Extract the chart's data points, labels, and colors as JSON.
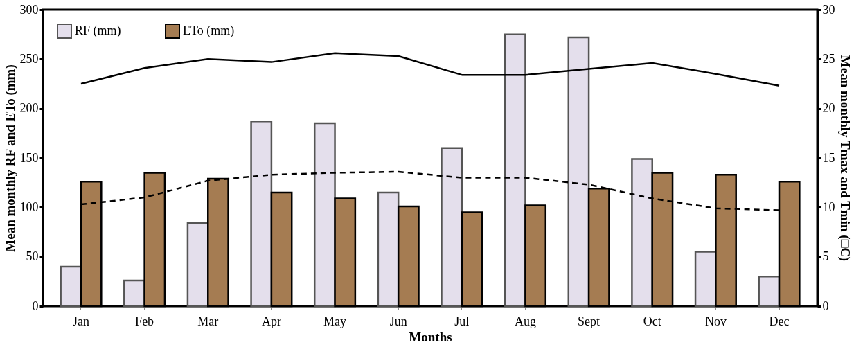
{
  "chart_data": {
    "type": "bar",
    "xlabel": "Months",
    "ylabel": "Mean monthly RF and ETo (mm)",
    "y2label": "Mean monthly Tmax and Tmin (□C)",
    "categories": [
      "Jan",
      "Feb",
      "Mar",
      "Apr",
      "May",
      "Jun",
      "Jul",
      "Aug",
      "Sept",
      "Oct",
      "Nov",
      "Dec"
    ],
    "series": [
      {
        "name": "RF (mm)",
        "color": "#e4dfec",
        "values": [
          40,
          26,
          84,
          187,
          185,
          115,
          160,
          275,
          272,
          149,
          55,
          30
        ]
      },
      {
        "name": "ETo (mm)",
        "color": "#a57c52",
        "values": [
          126,
          135,
          129,
          115,
          109,
          101,
          95,
          102,
          119,
          135,
          133,
          126
        ]
      },
      {
        "type": "line",
        "axis": "y2",
        "color": "#000000",
        "line_style": "solid",
        "values": [
          22.5,
          24.1,
          25.0,
          24.7,
          25.6,
          25.3,
          23.4,
          23.4,
          24.0,
          24.6,
          23.5,
          22.3
        ]
      },
      {
        "type": "line",
        "axis": "y2",
        "color": "#000000",
        "line_style": "dashed",
        "values": [
          10.3,
          11.0,
          12.7,
          13.3,
          13.5,
          13.6,
          13.0,
          13.0,
          12.3,
          10.9,
          9.9,
          9.7
        ]
      }
    ],
    "ylim": [
      0,
      300
    ],
    "yticks": [
      0,
      50,
      100,
      150,
      200,
      250,
      300
    ],
    "y2lim": [
      0,
      30
    ],
    "y2ticks": [
      0,
      5,
      10,
      15,
      20,
      25,
      30
    ],
    "grid": false,
    "legend": "top left",
    "marker": "none"
  }
}
